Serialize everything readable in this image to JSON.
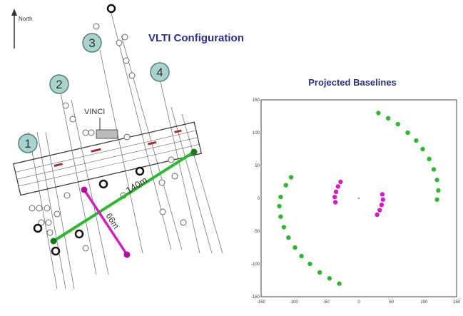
{
  "north_label": "North",
  "title": "VLTI Configuration",
  "telescope_labels": [
    "1",
    "2",
    "3",
    "4"
  ],
  "vinci_label": "VINCI",
  "baseline_long_label": "140m",
  "baseline_short_label": "66m",
  "plot_title": "Projected Baselines",
  "axis_ticks": [
    "-150",
    "-100",
    "-50",
    "0",
    "50",
    "100",
    "150"
  ],
  "colors": {
    "title": "#2b2f8a",
    "green": "#2db82d",
    "magenta": "#d21fc0",
    "badge_fill": "#a8d4cf",
    "badge_stroke": "#5a7d7a"
  },
  "chart_data": {
    "type": "scatter",
    "title": "Projected Baselines",
    "xlim": [
      -150,
      150
    ],
    "ylim": [
      -150,
      150
    ],
    "series": [
      {
        "color": "#2db82d",
        "points": [
          [
            30,
            130
          ],
          [
            45,
            122
          ],
          [
            60,
            113
          ],
          [
            75,
            100
          ],
          [
            88,
            88
          ],
          [
            98,
            75
          ],
          [
            108,
            60
          ],
          [
            115,
            44
          ],
          [
            120,
            28
          ],
          [
            122,
            12
          ],
          [
            120,
            -2
          ],
          [
            -30,
            -130
          ],
          [
            -45,
            -122
          ],
          [
            -60,
            -113
          ],
          [
            -75,
            -100
          ],
          [
            -88,
            -88
          ],
          [
            -98,
            -75
          ],
          [
            -108,
            -60
          ],
          [
            -115,
            -44
          ],
          [
            -120,
            -28
          ],
          [
            -122,
            -12
          ],
          [
            -120,
            2
          ],
          [
            -112,
            20
          ],
          [
            -104,
            32
          ]
        ]
      },
      {
        "color": "#d21fc0",
        "points": [
          [
            -28,
            25
          ],
          [
            -32,
            18
          ],
          [
            -35,
            10
          ],
          [
            -37,
            2
          ],
          [
            -36,
            -6
          ],
          [
            28,
            -25
          ],
          [
            32,
            -18
          ],
          [
            35,
            -10
          ],
          [
            37,
            -2
          ],
          [
            36,
            6
          ]
        ]
      }
    ]
  }
}
